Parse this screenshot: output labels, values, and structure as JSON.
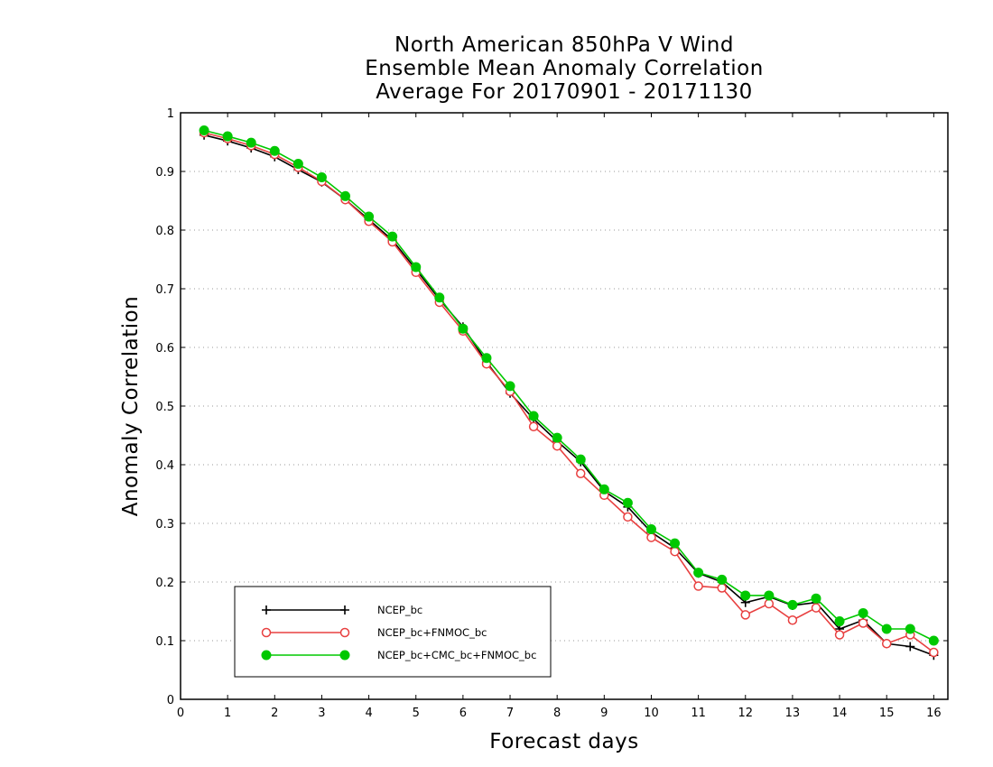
{
  "chart_data": {
    "type": "line",
    "title": [
      "North American 850hPa V Wind",
      "Ensemble Mean Anomaly Correlation",
      "Average For 20170901 - 20171130"
    ],
    "xlabel": "Forecast days",
    "ylabel": "Anomaly Correlation",
    "xlim": [
      0,
      16.3
    ],
    "ylim": [
      0,
      1
    ],
    "x_ticks": [
      0,
      1,
      2,
      3,
      4,
      5,
      6,
      7,
      8,
      9,
      10,
      11,
      12,
      13,
      14,
      15,
      16
    ],
    "y_ticks": [
      0,
      0.1,
      0.2,
      0.3,
      0.4,
      0.5,
      0.6,
      0.7,
      0.8,
      0.9,
      1
    ],
    "y_tick_labels": [
      "0",
      "0.1",
      "0.2",
      "0.3",
      "0.4",
      "0.5",
      "0.6",
      "0.7",
      "0.8",
      "0.9",
      "1"
    ],
    "grid": "horizontal-dotted",
    "legend_position": "bottom-left",
    "x": [
      0.5,
      1,
      1.5,
      2,
      2.5,
      3,
      3.5,
      4,
      4.5,
      5,
      5.5,
      6,
      6.5,
      7,
      7.5,
      8,
      8.5,
      9,
      9.5,
      10,
      10.5,
      11,
      11.5,
      12,
      12.5,
      13,
      13.5,
      14,
      14.5,
      15,
      15.5,
      16
    ],
    "series": [
      {
        "name": "NCEP_bc",
        "color": "#000000",
        "marker": "plus",
        "values": [
          0.962,
          0.952,
          0.94,
          0.925,
          0.903,
          0.882,
          0.852,
          0.818,
          0.783,
          0.733,
          0.682,
          0.635,
          0.575,
          0.522,
          0.478,
          0.44,
          0.405,
          0.355,
          0.328,
          0.285,
          0.258,
          0.215,
          0.2,
          0.165,
          0.175,
          0.16,
          0.165,
          0.12,
          0.135,
          0.095,
          0.09,
          0.075
        ]
      },
      {
        "name": "NCEP_bc+FNMOC_bc",
        "color": "#e84040",
        "marker": "open-circle",
        "values": [
          0.966,
          0.956,
          0.944,
          0.929,
          0.907,
          0.883,
          0.852,
          0.815,
          0.78,
          0.728,
          0.677,
          0.628,
          0.572,
          0.525,
          0.465,
          0.432,
          0.385,
          0.348,
          0.311,
          0.276,
          0.252,
          0.193,
          0.19,
          0.144,
          0.163,
          0.135,
          0.156,
          0.11,
          0.13,
          0.095,
          0.11,
          0.08
        ]
      },
      {
        "name": "NCEP_bc+CMC_bc+FNMOC_bc",
        "color": "#00c800",
        "marker": "filled-circle",
        "values": [
          0.97,
          0.96,
          0.949,
          0.935,
          0.913,
          0.89,
          0.858,
          0.823,
          0.789,
          0.737,
          0.685,
          0.632,
          0.582,
          0.534,
          0.483,
          0.446,
          0.409,
          0.358,
          0.335,
          0.29,
          0.266,
          0.216,
          0.204,
          0.177,
          0.177,
          0.161,
          0.172,
          0.133,
          0.147,
          0.12,
          0.12,
          0.1
        ]
      }
    ]
  }
}
